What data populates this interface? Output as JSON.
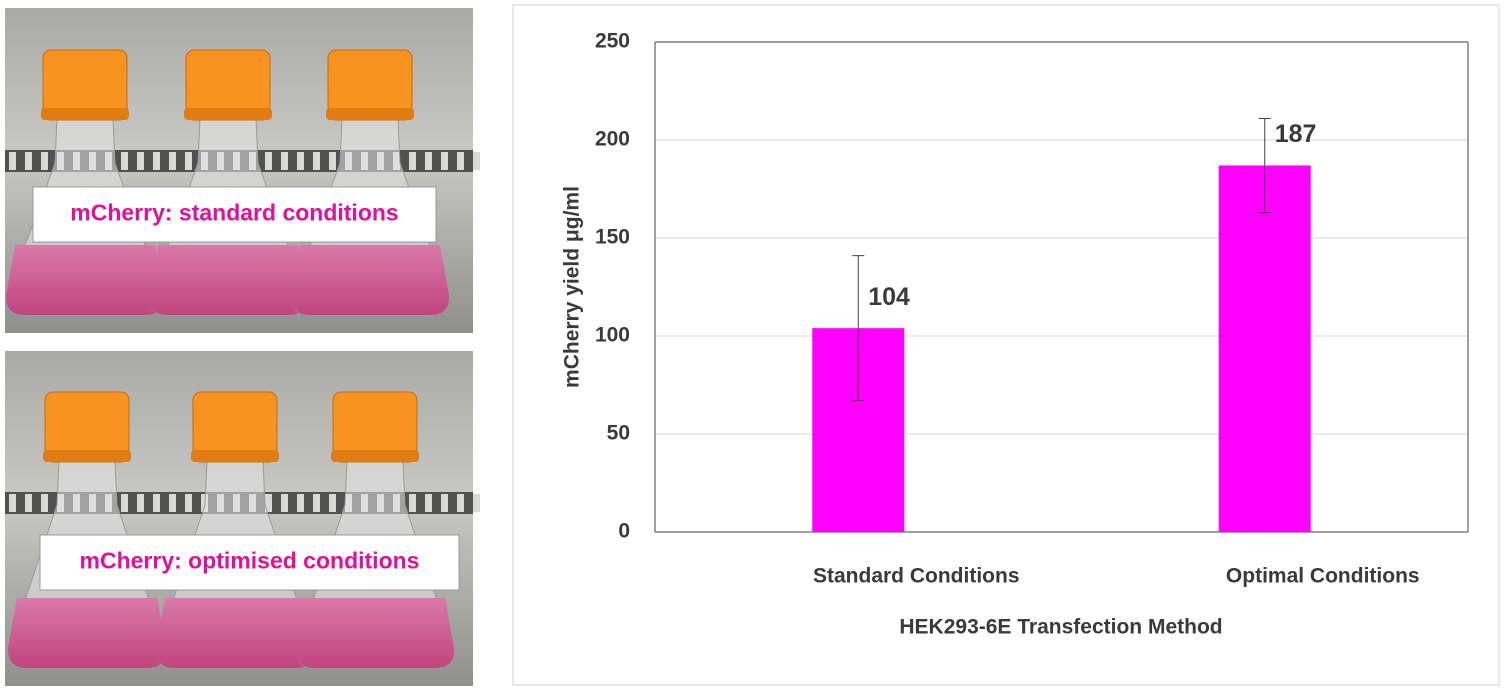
{
  "photos": [
    {
      "caption": "mCherry: standard conditions"
    },
    {
      "caption": "mCherry: optimised conditions"
    }
  ],
  "chart_data": {
    "type": "bar",
    "y_label": "mCherry yield μg/ml",
    "x_label": "HEK293-6E Transfection Method",
    "categories": [
      "Standard Conditions",
      "Optimal Conditions"
    ],
    "values": [
      104,
      187
    ],
    "errors": [
      37,
      24
    ],
    "color": "#ff00ff",
    "ylim": [
      0,
      250
    ],
    "yticks": [
      0,
      50,
      100,
      150,
      200,
      250
    ],
    "grid": true
  }
}
